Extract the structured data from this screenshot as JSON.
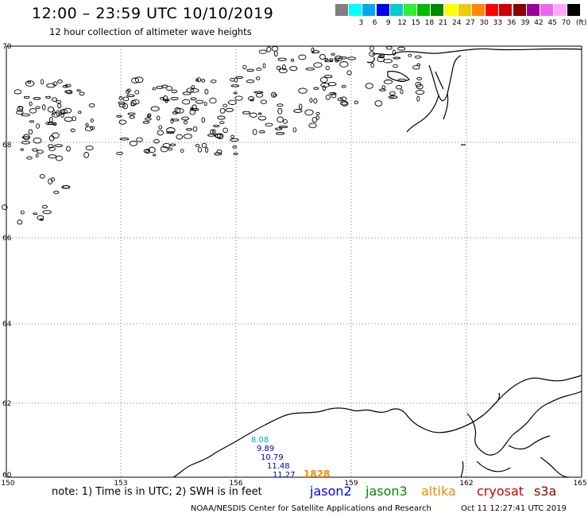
{
  "header": {
    "title": "12:00 – 23:59 UTC 10/10/2019",
    "subtitle": "12 hour collection of altimeter wave heights"
  },
  "legend": {
    "unit": "(ft)",
    "bins": [
      {
        "label": "",
        "color": "#808080"
      },
      {
        "label": "3",
        "color": "#00ffff"
      },
      {
        "label": "6",
        "color": "#00aaee"
      },
      {
        "label": "9",
        "color": "#0000ee"
      },
      {
        "label": "12",
        "color": "#00cccc"
      },
      {
        "label": "15",
        "color": "#33ee33"
      },
      {
        "label": "18",
        "color": "#00bb00"
      },
      {
        "label": "21",
        "color": "#008800"
      },
      {
        "label": "24",
        "color": "#ffff00"
      },
      {
        "label": "27",
        "color": "#eecc00"
      },
      {
        "label": "30",
        "color": "#ff8800"
      },
      {
        "label": "33",
        "color": "#ff0000"
      },
      {
        "label": "36",
        "color": "#cc0000"
      },
      {
        "label": "39",
        "color": "#880000"
      },
      {
        "label": "42",
        "color": "#990099"
      },
      {
        "label": "45",
        "color": "#ee66ee"
      },
      {
        "label": "70",
        "color": "#ffaaff"
      },
      {
        "label": "",
        "color": "#000000"
      }
    ]
  },
  "axes": {
    "lat_labels": [
      "70",
      "68",
      "66",
      "64",
      "62",
      "60"
    ],
    "lon_labels": [
      "150",
      "153",
      "156",
      "159",
      "162",
      "165"
    ]
  },
  "readings": [
    {
      "value": "8.08",
      "color": "#00aacc"
    },
    {
      "value": "9.89",
      "color": "#0000cc"
    },
    {
      "value": "10.79",
      "color": "#0000cc"
    },
    {
      "value": "11.48",
      "color": "#0000cc"
    },
    {
      "value": "11.27",
      "color": "#0000cc"
    },
    {
      "value": "1828",
      "color": "#ff8800"
    }
  ],
  "footer": {
    "note": "note: 1) Time is in UTC; 2) SWH is in feet",
    "satellites": [
      {
        "name": "jason2",
        "color": "#0000ee"
      },
      {
        "name": "jason3",
        "color": "#008800"
      },
      {
        "name": "altika",
        "color": "#ff8800"
      },
      {
        "name": "cryosat",
        "color": "#cc0000"
      },
      {
        "name": "s3a",
        "color": "#880000"
      }
    ],
    "credit": "NOAA/NESDIS Center for Satellite Applications and Research",
    "timestamp": "Oct 11 12:27:41 UTC 2019"
  }
}
